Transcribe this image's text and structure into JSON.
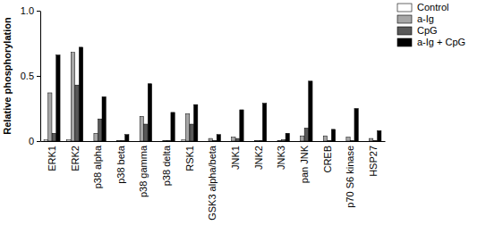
{
  "chart_data": {
    "type": "bar",
    "y_label": "Relative phosphorylation",
    "categories": [
      "ERK1",
      "ERK2",
      "p38 alpha",
      "p38 beta",
      "p38 gamma",
      "p38 delta",
      "RSK1",
      "GSK3 alpha/beta",
      "JNK1",
      "JNK2",
      "JNK3",
      "pan JNK",
      "CREB",
      "p70 S6 kinase",
      "HSP27"
    ],
    "series": [
      {
        "name": "Control",
        "color": "#ffffff",
        "values": [
          0.01,
          0.01,
          0,
          0,
          0,
          0,
          0.01,
          0,
          0,
          0,
          0,
          0,
          0,
          0,
          0
        ]
      },
      {
        "name": "a-Ig",
        "color": "#a6a6a6",
        "values": [
          0.37,
          0.68,
          0.06,
          0.005,
          0.19,
          0.005,
          0.21,
          0.02,
          0.03,
          0.005,
          0.005,
          0.04,
          0.04,
          0.03,
          0.02
        ]
      },
      {
        "name": "CpG",
        "color": "#595959",
        "values": [
          0.06,
          0.43,
          0.17,
          0.005,
          0.13,
          0.005,
          0.13,
          0.005,
          0.02,
          0.005,
          0.01,
          0.1,
          0.005,
          0.005,
          0.005
        ]
      },
      {
        "name": "a-Ig + CpG",
        "color": "#000000",
        "values": [
          0.66,
          0.72,
          0.34,
          0.05,
          0.44,
          0.22,
          0.28,
          0.05,
          0.24,
          0.29,
          0.06,
          0.46,
          0.09,
          0.25,
          0.08
        ]
      }
    ],
    "ylim": [
      0,
      1
    ],
    "yticks": [
      0,
      0.5,
      {
        "value": 1,
        "label": "1.0"
      }
    ],
    "legend": "top-right",
    "grid": false
  }
}
